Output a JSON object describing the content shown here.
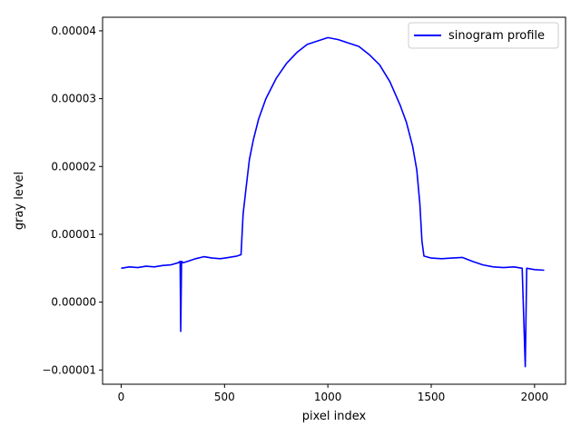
{
  "chart_data": {
    "type": "line",
    "title": "",
    "xlabel": "pixel index",
    "ylabel": "gray level",
    "xlim": [
      -90,
      2150
    ],
    "ylim": [
      -1.21e-05,
      4.2e-05
    ],
    "xticks": [
      0,
      500,
      1000,
      1500,
      2000
    ],
    "xtick_labels": [
      "0",
      "500",
      "1000",
      "1500",
      "2000"
    ],
    "yticks": [
      -1e-05,
      0,
      1e-05,
      2e-05,
      3e-05,
      4e-05
    ],
    "ytick_labels": [
      "−0.00001",
      "0.00000",
      "0.00001",
      "0.00002",
      "0.00003",
      "0.00004"
    ],
    "grid": false,
    "legend_position": "upper right",
    "series": [
      {
        "name": "sinogram profile",
        "color": "#0000ff",
        "points": [
          [
            0,
            5e-06
          ],
          [
            40,
            5.2e-06
          ],
          [
            80,
            5.1e-06
          ],
          [
            120,
            5.3e-06
          ],
          [
            160,
            5.2e-06
          ],
          [
            200,
            5.4e-06
          ],
          [
            240,
            5.5e-06
          ],
          [
            275,
            5.8e-06
          ],
          [
            285,
            6e-06
          ],
          [
            288,
            -4.3e-06
          ],
          [
            292,
            6e-06
          ],
          [
            300,
            5.8e-06
          ],
          [
            330,
            6.1e-06
          ],
          [
            360,
            6.4e-06
          ],
          [
            400,
            6.7e-06
          ],
          [
            440,
            6.5e-06
          ],
          [
            480,
            6.4e-06
          ],
          [
            520,
            6.6e-06
          ],
          [
            560,
            6.8e-06
          ],
          [
            580,
            7e-06
          ],
          [
            590,
            1.3e-05
          ],
          [
            605,
            1.7e-05
          ],
          [
            620,
            2.1e-05
          ],
          [
            640,
            2.4e-05
          ],
          [
            665,
            2.7e-05
          ],
          [
            700,
            3e-05
          ],
          [
            750,
            3.3e-05
          ],
          [
            800,
            3.52e-05
          ],
          [
            850,
            3.68e-05
          ],
          [
            900,
            3.8e-05
          ],
          [
            950,
            3.85e-05
          ],
          [
            1000,
            3.9e-05
          ],
          [
            1050,
            3.87e-05
          ],
          [
            1100,
            3.82e-05
          ],
          [
            1150,
            3.77e-05
          ],
          [
            1200,
            3.65e-05
          ],
          [
            1250,
            3.5e-05
          ],
          [
            1300,
            3.25e-05
          ],
          [
            1350,
            2.9e-05
          ],
          [
            1380,
            2.65e-05
          ],
          [
            1410,
            2.3e-05
          ],
          [
            1430,
            1.95e-05
          ],
          [
            1445,
            1.45e-05
          ],
          [
            1455,
            9e-06
          ],
          [
            1465,
            6.8e-06
          ],
          [
            1500,
            6.5e-06
          ],
          [
            1550,
            6.4e-06
          ],
          [
            1600,
            6.5e-06
          ],
          [
            1650,
            6.6e-06
          ],
          [
            1700,
            6e-06
          ],
          [
            1750,
            5.5e-06
          ],
          [
            1800,
            5.2e-06
          ],
          [
            1850,
            5.1e-06
          ],
          [
            1900,
            5.2e-06
          ],
          [
            1940,
            5e-06
          ],
          [
            1955,
            -9.5e-06
          ],
          [
            1962,
            5e-06
          ],
          [
            2000,
            4.8e-06
          ],
          [
            2047,
            4.7e-06
          ]
        ]
      }
    ]
  }
}
